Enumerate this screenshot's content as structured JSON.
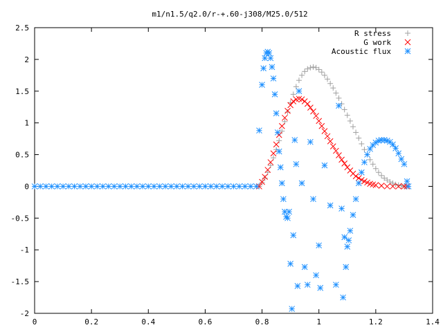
{
  "chart_data": {
    "type": "scatter",
    "title": "m1/n1.5/q2.0/r-+.60-j308/M25.0/512",
    "xlabel": "",
    "ylabel": "",
    "xlim": [
      0,
      1.4
    ],
    "ylim": [
      -2,
      2.5
    ],
    "xticks": [
      "0",
      "0.2",
      "0.4",
      "0.6",
      "0.8",
      "1",
      "1.2",
      "1.4"
    ],
    "yticks": [
      "2.5",
      "2",
      "1.5",
      "1",
      "0.5",
      "0",
      "-0.5",
      "-1",
      "-1.5",
      "-2"
    ],
    "grid": false,
    "legend_position": "top-right",
    "series": [
      {
        "name": "R stress",
        "marker": "plus",
        "color": "#a0a0a0",
        "points": [
          [
            0.79,
            0.0
          ],
          [
            0.8,
            0.06
          ],
          [
            0.81,
            0.13
          ],
          [
            0.82,
            0.22
          ],
          [
            0.83,
            0.33
          ],
          [
            0.84,
            0.45
          ],
          [
            0.85,
            0.58
          ],
          [
            0.86,
            0.72
          ],
          [
            0.87,
            0.87
          ],
          [
            0.88,
            1.02
          ],
          [
            0.89,
            1.17
          ],
          [
            0.9,
            1.32
          ],
          [
            0.91,
            1.45
          ],
          [
            0.92,
            1.57
          ],
          [
            0.93,
            1.67
          ],
          [
            0.94,
            1.75
          ],
          [
            0.95,
            1.81
          ],
          [
            0.96,
            1.85
          ],
          [
            0.97,
            1.87
          ],
          [
            0.98,
            1.88
          ],
          [
            0.99,
            1.87
          ],
          [
            1.0,
            1.84
          ],
          [
            1.01,
            1.8
          ],
          [
            1.02,
            1.75
          ],
          [
            1.03,
            1.69
          ],
          [
            1.04,
            1.62
          ],
          [
            1.05,
            1.55
          ],
          [
            1.06,
            1.47
          ],
          [
            1.07,
            1.39
          ],
          [
            1.08,
            1.3
          ],
          [
            1.09,
            1.21
          ],
          [
            1.1,
            1.12
          ],
          [
            1.11,
            1.03
          ],
          [
            1.12,
            0.94
          ],
          [
            1.13,
            0.85
          ],
          [
            1.14,
            0.76
          ],
          [
            1.15,
            0.67
          ],
          [
            1.16,
            0.58
          ],
          [
            1.17,
            0.5
          ],
          [
            1.18,
            0.42
          ],
          [
            1.19,
            0.35
          ],
          [
            1.2,
            0.28
          ],
          [
            1.21,
            0.22
          ],
          [
            1.22,
            0.17
          ],
          [
            1.23,
            0.13
          ],
          [
            1.24,
            0.1
          ],
          [
            1.25,
            0.07
          ],
          [
            1.26,
            0.05
          ],
          [
            1.27,
            0.03
          ],
          [
            1.28,
            0.02
          ],
          [
            1.29,
            0.01
          ],
          [
            1.3,
            0.0
          ],
          [
            1.31,
            0.0
          ]
        ]
      },
      {
        "name": "G work",
        "marker": "cross",
        "color": "#ff0000",
        "points": [
          [
            0.79,
            0.0
          ],
          [
            0.8,
            0.07
          ],
          [
            0.81,
            0.15
          ],
          [
            0.82,
            0.26
          ],
          [
            0.83,
            0.38
          ],
          [
            0.84,
            0.52
          ],
          [
            0.85,
            0.66
          ],
          [
            0.86,
            0.81
          ],
          [
            0.87,
            0.95
          ],
          [
            0.88,
            1.08
          ],
          [
            0.89,
            1.19
          ],
          [
            0.9,
            1.28
          ],
          [
            0.91,
            1.34
          ],
          [
            0.92,
            1.37
          ],
          [
            0.93,
            1.38
          ],
          [
            0.94,
            1.37
          ],
          [
            0.95,
            1.34
          ],
          [
            0.96,
            1.3
          ],
          [
            0.97,
            1.24
          ],
          [
            0.98,
            1.18
          ],
          [
            0.99,
            1.11
          ],
          [
            1.0,
            1.03
          ],
          [
            1.01,
            0.95
          ],
          [
            1.02,
            0.87
          ],
          [
            1.03,
            0.79
          ],
          [
            1.04,
            0.71
          ],
          [
            1.05,
            0.63
          ],
          [
            1.06,
            0.56
          ],
          [
            1.07,
            0.49
          ],
          [
            1.08,
            0.42
          ],
          [
            1.09,
            0.36
          ],
          [
            1.1,
            0.3
          ],
          [
            1.11,
            0.25
          ],
          [
            1.12,
            0.2
          ],
          [
            1.13,
            0.16
          ],
          [
            1.14,
            0.13
          ],
          [
            1.15,
            0.1
          ],
          [
            1.16,
            0.08
          ],
          [
            1.17,
            0.06
          ],
          [
            1.18,
            0.04
          ],
          [
            1.19,
            0.03
          ],
          [
            1.2,
            0.02
          ],
          [
            1.22,
            0.01
          ],
          [
            1.24,
            0.0
          ],
          [
            1.26,
            0.0
          ],
          [
            1.28,
            0.0
          ],
          [
            1.3,
            0.0
          ],
          [
            1.31,
            0.0
          ]
        ]
      },
      {
        "name": "Acoustic flux",
        "marker": "star",
        "color": "#1e90ff",
        "points": [
          [
            0.0,
            0.0
          ],
          [
            0.02,
            0.0
          ],
          [
            0.04,
            0.0
          ],
          [
            0.06,
            0.0
          ],
          [
            0.08,
            0.0
          ],
          [
            0.1,
            0.0
          ],
          [
            0.12,
            0.0
          ],
          [
            0.14,
            0.0
          ],
          [
            0.16,
            0.0
          ],
          [
            0.18,
            0.0
          ],
          [
            0.2,
            0.0
          ],
          [
            0.22,
            0.0
          ],
          [
            0.24,
            0.0
          ],
          [
            0.26,
            0.0
          ],
          [
            0.28,
            0.0
          ],
          [
            0.3,
            0.0
          ],
          [
            0.32,
            0.0
          ],
          [
            0.34,
            0.0
          ],
          [
            0.36,
            0.0
          ],
          [
            0.38,
            0.0
          ],
          [
            0.4,
            0.0
          ],
          [
            0.42,
            0.0
          ],
          [
            0.44,
            0.0
          ],
          [
            0.46,
            0.0
          ],
          [
            0.48,
            0.0
          ],
          [
            0.5,
            0.0
          ],
          [
            0.52,
            0.0
          ],
          [
            0.54,
            0.0
          ],
          [
            0.56,
            0.0
          ],
          [
            0.58,
            0.0
          ],
          [
            0.6,
            0.0
          ],
          [
            0.62,
            0.0
          ],
          [
            0.64,
            0.0
          ],
          [
            0.66,
            0.0
          ],
          [
            0.68,
            0.0
          ],
          [
            0.7,
            0.0
          ],
          [
            0.72,
            0.0
          ],
          [
            0.74,
            0.0
          ],
          [
            0.76,
            0.0
          ],
          [
            0.78,
            0.0
          ],
          [
            0.79,
            0.88
          ],
          [
            0.8,
            1.6
          ],
          [
            0.805,
            1.86
          ],
          [
            0.81,
            2.02
          ],
          [
            0.815,
            2.1
          ],
          [
            0.82,
            2.12
          ],
          [
            0.825,
            2.1
          ],
          [
            0.83,
            2.02
          ],
          [
            0.835,
            1.88
          ],
          [
            0.84,
            1.7
          ],
          [
            0.845,
            1.45
          ],
          [
            0.85,
            1.15
          ],
          [
            0.855,
            0.85
          ],
          [
            0.86,
            0.55
          ],
          [
            0.865,
            0.3
          ],
          [
            0.87,
            0.05
          ],
          [
            0.875,
            -0.2
          ],
          [
            0.88,
            -0.4
          ],
          [
            0.885,
            -0.48
          ],
          [
            0.89,
            -0.5
          ],
          [
            0.895,
            -0.4
          ],
          [
            0.9,
            -1.22
          ],
          [
            0.905,
            -1.93
          ],
          [
            0.91,
            -0.77
          ],
          [
            0.915,
            0.73
          ],
          [
            0.92,
            0.35
          ],
          [
            0.925,
            -1.57
          ],
          [
            0.93,
            1.5
          ],
          [
            0.94,
            0.05
          ],
          [
            0.95,
            -1.27
          ],
          [
            0.96,
            -1.55
          ],
          [
            0.97,
            0.7
          ],
          [
            0.98,
            -0.2
          ],
          [
            0.99,
            -1.4
          ],
          [
            1.0,
            -0.93
          ],
          [
            1.005,
            -1.6
          ],
          [
            1.02,
            0.33
          ],
          [
            1.04,
            -0.3
          ],
          [
            1.06,
            -1.55
          ],
          [
            1.07,
            1.27
          ],
          [
            1.08,
            -0.35
          ],
          [
            1.085,
            -1.75
          ],
          [
            1.09,
            -0.8
          ],
          [
            1.095,
            -1.27
          ],
          [
            1.1,
            -0.95
          ],
          [
            1.105,
            -0.85
          ],
          [
            1.11,
            -0.7
          ],
          [
            1.12,
            -0.45
          ],
          [
            1.13,
            -0.2
          ],
          [
            1.14,
            0.05
          ],
          [
            1.15,
            0.22
          ],
          [
            1.16,
            0.38
          ],
          [
            1.17,
            0.5
          ],
          [
            1.18,
            0.59
          ],
          [
            1.19,
            0.65
          ],
          [
            1.2,
            0.69
          ],
          [
            1.21,
            0.72
          ],
          [
            1.22,
            0.73
          ],
          [
            1.23,
            0.73
          ],
          [
            1.24,
            0.72
          ],
          [
            1.25,
            0.7
          ],
          [
            1.26,
            0.66
          ],
          [
            1.27,
            0.6
          ],
          [
            1.28,
            0.52
          ],
          [
            1.29,
            0.43
          ],
          [
            1.3,
            0.35
          ],
          [
            1.31,
            0.08
          ],
          [
            1.315,
            0.0
          ]
        ]
      }
    ]
  }
}
